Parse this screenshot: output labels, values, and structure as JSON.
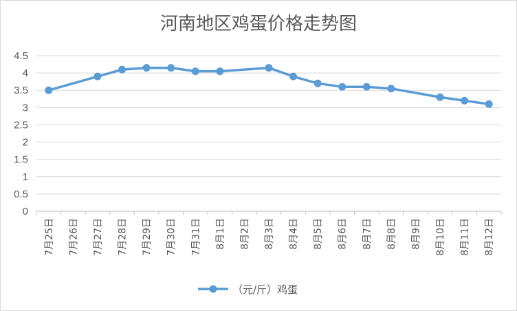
{
  "chart_data": {
    "type": "line",
    "title": "河南地区鸡蛋价格走势图",
    "xlabel": "",
    "ylabel": "",
    "categories": [
      "7月25日",
      "7月26日",
      "7月27日",
      "7月28日",
      "7月29日",
      "7月30日",
      "7月31日",
      "8月1日",
      "8月2日",
      "8月3日",
      "8月4日",
      "8月5日",
      "8月6日",
      "8月7日",
      "8月8日",
      "8月9日",
      "8月10日",
      "8月11日",
      "8月12日"
    ],
    "ylim": [
      0,
      4.5
    ],
    "yticks": [
      "0",
      "0.5",
      "1",
      "1.5",
      "2",
      "2.5",
      "3",
      "3.5",
      "4",
      "4.5"
    ],
    "grid": true,
    "legend_position": "bottom",
    "series": [
      {
        "name": "（元/斤）鸡蛋",
        "color": "#5b9bd5",
        "points": [
          {
            "x": "7月25日",
            "y": 3.5
          },
          {
            "x": "7月27日",
            "y": 3.9
          },
          {
            "x": "7月28日",
            "y": 4.1
          },
          {
            "x": "7月29日",
            "y": 4.15
          },
          {
            "x": "7月30日",
            "y": 4.15
          },
          {
            "x": "7月31日",
            "y": 4.05
          },
          {
            "x": "8月1日",
            "y": 4.05
          },
          {
            "x": "8月3日",
            "y": 4.15
          },
          {
            "x": "8月4日",
            "y": 3.9
          },
          {
            "x": "8月5日",
            "y": 3.7
          },
          {
            "x": "8月6日",
            "y": 3.6
          },
          {
            "x": "8月7日",
            "y": 3.6
          },
          {
            "x": "8月8日",
            "y": 3.55
          },
          {
            "x": "8月10日",
            "y": 3.3
          },
          {
            "x": "8月11日",
            "y": 3.2
          },
          {
            "x": "8月12日",
            "y": 3.1
          }
        ]
      }
    ]
  }
}
